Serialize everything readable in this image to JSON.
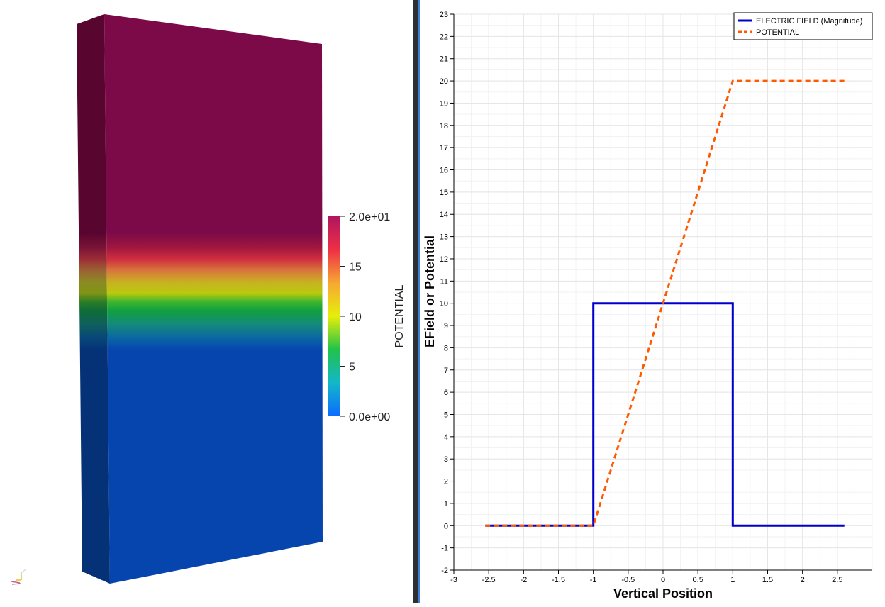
{
  "render_view": {
    "colorbar": {
      "title": "POTENTIAL",
      "range": [
        0,
        20
      ],
      "tick_values": [
        20,
        15,
        10,
        5,
        0
      ],
      "tick_labels": [
        "2.0e+01",
        "15",
        "10",
        "5",
        "0.0e+00"
      ],
      "colormap": [
        "#0b6bff",
        "#13b7c9",
        "#21c24a",
        "#e6ee0a",
        "#f7a733",
        "#ee2f45",
        "#b0155f"
      ]
    },
    "slab_colors": {
      "top_face": "#7d0a48",
      "top_side": "#58052f",
      "bottom_face": "#0645ae",
      "bottom_side": "#053276"
    }
  },
  "chart_data": {
    "type": "line",
    "xlabel": "Vertical Position",
    "ylabel": "EField or Potential",
    "xlim": [
      -3,
      3
    ],
    "ylim": [
      -2,
      23
    ],
    "x_ticks": [
      -3,
      -2.5,
      -2,
      -1.5,
      -1,
      -0.5,
      0,
      0.5,
      1,
      1.5,
      2,
      2.5
    ],
    "y_ticks": [
      -2,
      -1,
      0,
      1,
      2,
      3,
      4,
      5,
      6,
      7,
      8,
      9,
      10,
      11,
      12,
      13,
      14,
      15,
      16,
      17,
      18,
      19,
      20,
      21,
      22,
      23
    ],
    "grid": true,
    "legend": "top-right",
    "series": [
      {
        "name": "ELECTRIC FIELD (Magnitude)",
        "color": "#0000cc",
        "style": "solid",
        "points": [
          [
            -2.55,
            0
          ],
          [
            -1.0,
            0
          ],
          [
            -1.0,
            10
          ],
          [
            1.0,
            10
          ],
          [
            1.0,
            0
          ],
          [
            2.6,
            0
          ]
        ]
      },
      {
        "name": "POTENTIAL",
        "color": "#ff5a00",
        "style": "dashed",
        "points": [
          [
            -2.55,
            0
          ],
          [
            -1.0,
            0
          ],
          [
            1.0,
            20
          ],
          [
            2.6,
            20
          ]
        ]
      }
    ]
  }
}
